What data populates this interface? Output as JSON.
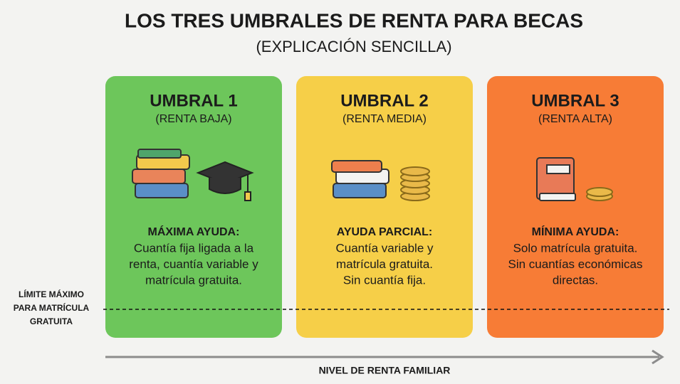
{
  "header": {
    "title": "LOS TRES UMBRALES DE RENTA PARA BECAS",
    "subtitle": "(EXPLICACIÓN SENCILLA)"
  },
  "cards": [
    {
      "title": "UMBRAL 1",
      "subtitle": "(RENTA BAJA)",
      "heading": "MÁXIMA AYUDA:",
      "lines": [
        "Cuantía fija ligada a la",
        "renta, cuantía variable y",
        "matrícula gratuita."
      ]
    },
    {
      "title": "UMBRAL 2",
      "subtitle": "(RENTA MEDIA)",
      "heading": "AYUDA PARCIAL:",
      "lines": [
        "Cuantía variable y",
        "matrícula gratuita.",
        "Sin cuantía fija."
      ]
    },
    {
      "title": "UMBRAL 3",
      "subtitle": "(RENTA ALTA)",
      "heading": "MÍNIMA AYUDA:",
      "lines": [
        "Solo matrícula gratuita.",
        "Sin cuantías económicas",
        "directas."
      ]
    }
  ],
  "limit_label": [
    "LÍMITE MÁXIMO",
    "PARA MATRÍCULA",
    "GRATUITA"
  ],
  "axis_label": "NIVEL DE RENTA FAMILIAR"
}
